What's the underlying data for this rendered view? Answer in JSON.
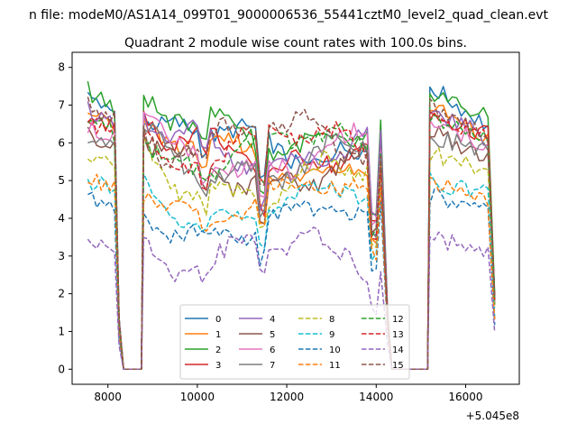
{
  "chart_data": {
    "type": "line",
    "suptitle": "n file: modeM0/AS1A14_099T01_9000006536_55441cztM0_level2_quad_clean.evt",
    "title": "Quadrant 2 module wise count rates with 100.0s bins.",
    "xlabel": "",
    "ylabel": "",
    "x_offset_label": "+5.045e8",
    "xlim": [
      7200,
      17200
    ],
    "ylim": [
      -0.4,
      8.4
    ],
    "x_ticks": [
      8000,
      10000,
      12000,
      14000,
      16000
    ],
    "x_tick_labels": [
      "8000",
      "10000",
      "12000",
      "14000",
      "16000"
    ],
    "y_ticks": [
      0,
      1,
      2,
      3,
      4,
      5,
      6,
      7,
      8
    ],
    "y_tick_labels": [
      "0",
      "1",
      "2",
      "3",
      "4",
      "5",
      "6",
      "7",
      "8"
    ],
    "grid": false,
    "legend": "lower-center, 4 columns",
    "data_segments": [
      {
        "start": 7550,
        "end": 8150
      },
      {
        "start": 8800,
        "end": 14150
      },
      {
        "start": 15200,
        "end": 16550
      }
    ],
    "gap_segments": [
      {
        "x": [
          8150,
          8250,
          8350,
          8750,
          8800
        ],
        "profile": [
          1.0,
          0.2,
          0.0,
          0.0,
          1.0
        ]
      },
      {
        "x": [
          14150,
          14250,
          14350,
          14450,
          14550,
          15150,
          15200
        ],
        "profile": [
          1.0,
          0.3,
          0.0,
          0.0,
          0.0,
          0.0,
          1.0
        ]
      },
      {
        "x": [
          16550,
          16650
        ],
        "profile": [
          1.0,
          0.3
        ]
      }
    ],
    "dips": [
      {
        "x": 10150,
        "depth": 0.1
      },
      {
        "x": 11450,
        "depth": 0.3
      },
      {
        "x": 13950,
        "depth": 0.55
      },
      {
        "x": 14250,
        "depth": 0.4
      }
    ],
    "series": [
      {
        "name": "0",
        "color": "#1f77b4",
        "style": "solid",
        "level": 6.0,
        "start_level": 7.5,
        "end_level": 6.4
      },
      {
        "name": "1",
        "color": "#ff7f0e",
        "style": "solid",
        "level": 5.6,
        "start_level": 7.0,
        "end_level": 6.0
      },
      {
        "name": "2",
        "color": "#2ca02c",
        "style": "solid",
        "level": 6.3,
        "start_level": 7.4,
        "end_level": 6.6
      },
      {
        "name": "3",
        "color": "#d62728",
        "style": "solid",
        "level": 5.8,
        "start_level": 6.7,
        "end_level": 6.2
      },
      {
        "name": "4",
        "color": "#9467bd",
        "style": "solid",
        "level": 5.9,
        "start_level": 6.9,
        "end_level": 6.1
      },
      {
        "name": "5",
        "color": "#8c564b",
        "style": "solid",
        "level": 5.3,
        "start_level": 6.3,
        "end_level": 5.6
      },
      {
        "name": "6",
        "color": "#e377c2",
        "style": "solid",
        "level": 5.7,
        "start_level": 6.5,
        "end_level": 5.9
      },
      {
        "name": "7",
        "color": "#7f7f7f",
        "style": "solid",
        "level": 5.5,
        "start_level": 6.2,
        "end_level": 5.8
      },
      {
        "name": "8",
        "color": "#bcbd22",
        "style": "dashed",
        "level": 5.0,
        "start_level": 5.7,
        "end_level": 5.3
      },
      {
        "name": "9",
        "color": "#17becf",
        "style": "dashed",
        "level": 4.4,
        "start_level": 5.0,
        "end_level": 4.6
      },
      {
        "name": "10",
        "color": "#1f77b4",
        "style": "dashed",
        "level": 3.9,
        "start_level": 4.6,
        "end_level": 4.1
      },
      {
        "name": "11",
        "color": "#ff7f0e",
        "style": "dashed",
        "level": 4.5,
        "start_level": 5.0,
        "end_level": 4.5
      },
      {
        "name": "12",
        "color": "#2ca02c",
        "style": "dashed",
        "level": 5.8,
        "start_level": 6.6,
        "end_level": 6.0
      },
      {
        "name": "13",
        "color": "#d62728",
        "style": "dashed",
        "level": 5.9,
        "start_level": 6.6,
        "end_level": 6.1
      },
      {
        "name": "14",
        "color": "#9467bd",
        "style": "dashed",
        "level": 3.0,
        "start_level": 3.5,
        "end_level": 3.0
      },
      {
        "name": "15",
        "color": "#8c564b",
        "style": "dashed",
        "level": 6.1,
        "start_level": 7.0,
        "end_level": 6.2
      }
    ]
  }
}
